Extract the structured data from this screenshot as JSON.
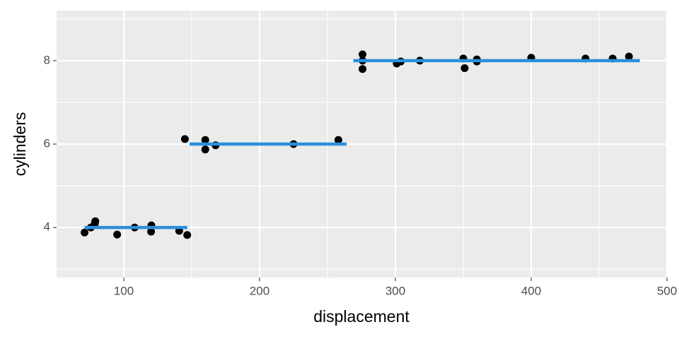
{
  "chart_data": {
    "type": "scatter",
    "x_label": "displacement",
    "y_label": "cylinders",
    "x": [
      71.1,
      75.7,
      78.7,
      79,
      95.1,
      108,
      120.1,
      120.3,
      140.8,
      146.7,
      145,
      160,
      160,
      167.6,
      225,
      258,
      275.8,
      275.8,
      275.8,
      301,
      304,
      318,
      350,
      351,
      360,
      360,
      400,
      440,
      460,
      472
    ],
    "y": [
      3.88,
      4.0,
      4.1,
      4.15,
      3.83,
      4.0,
      3.9,
      4.05,
      3.92,
      3.82,
      6.12,
      6.1,
      5.87,
      5.97,
      6.0,
      6.1,
      8.15,
      8.0,
      7.8,
      7.93,
      7.98,
      8.0,
      8.05,
      7.82,
      7.98,
      8.03,
      8.07,
      8.05,
      8.05,
      8.1
    ],
    "color": "#000000",
    "segments": {
      "color": "#2b8fdd",
      "x0": [
        71.1,
        148.4,
        269
      ],
      "x1": [
        146.7,
        264,
        480
      ],
      "y": [
        4,
        6,
        8
      ]
    },
    "xlim": [
      50.5,
      500
    ],
    "ylim": [
      2.8,
      9.2
    ],
    "xticks": [
      100,
      200,
      300,
      400,
      500
    ],
    "yticks": [
      4,
      6,
      8
    ],
    "xminor": [
      150,
      250,
      350,
      450
    ],
    "yminor": [
      3,
      5,
      7,
      9
    ],
    "grid": true
  }
}
